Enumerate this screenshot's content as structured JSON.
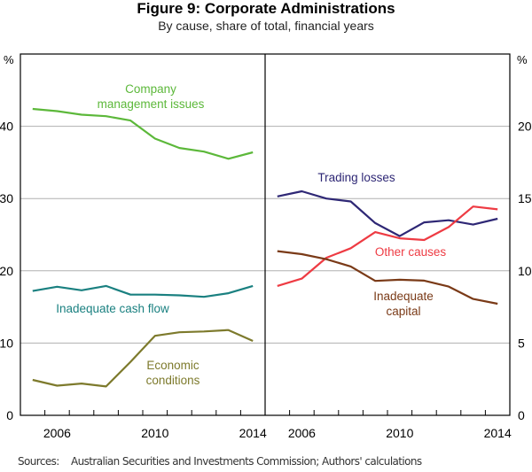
{
  "chart_data": {
    "type": "line",
    "title": "Figure 9: Corporate Administrations",
    "subtitle": "By cause, share of total, financial years",
    "sources_label": "Sources:",
    "sources_text": "Australian Securities and Investments Commission; Authors' calculations",
    "x": [
      2005,
      2006,
      2007,
      2008,
      2009,
      2010,
      2011,
      2012,
      2013,
      2014
    ],
    "xtick_labels": [
      "2006",
      "2010",
      "2014"
    ],
    "xtick_years": [
      2006,
      2010,
      2014
    ],
    "grid": true,
    "panels": [
      {
        "name": "left",
        "ylabel": "%",
        "ylim": [
          0,
          50
        ],
        "yticks": [
          0,
          10,
          20,
          30,
          40
        ],
        "series": [
          {
            "name": "Company management issues",
            "label_lines": [
              "Company",
              "management issues"
            ],
            "color": "#5cb83a",
            "values": [
              42.4,
              42.1,
              41.6,
              41.4,
              40.8,
              38.3,
              37.0,
              36.5,
              35.5,
              36.4
            ]
          },
          {
            "name": "Inadequate cash flow",
            "label_lines": [
              "Inadequate cash flow"
            ],
            "color": "#1a8080",
            "values": [
              17.2,
              17.8,
              17.3,
              17.9,
              16.7,
              16.7,
              16.6,
              16.4,
              16.9,
              17.9
            ]
          },
          {
            "name": "Economic conditions",
            "label_lines": [
              "Economic",
              "conditions"
            ],
            "color": "#7d7a2c",
            "values": [
              4.9,
              4.1,
              4.4,
              4.0,
              7.4,
              11.0,
              11.5,
              11.6,
              11.8,
              10.3
            ]
          }
        ]
      },
      {
        "name": "right",
        "ylabel": "%",
        "ylim": [
          0,
          25
        ],
        "yticks": [
          0,
          5,
          10,
          15,
          20
        ],
        "series": [
          {
            "name": "Trading losses",
            "label_lines": [
              "Trading losses"
            ],
            "color": "#2e2775",
            "values": [
              15.15,
              15.5,
              15.0,
              14.8,
              13.3,
              12.4,
              13.35,
              13.5,
              13.2,
              13.6
            ]
          },
          {
            "name": "Other causes",
            "label_lines": [
              "Other causes"
            ],
            "color": "#ee3b43",
            "values": [
              8.95,
              9.46,
              10.9,
              11.56,
              12.68,
              12.25,
              12.13,
              13.03,
              14.45,
              14.25
            ]
          },
          {
            "name": "Inadequate capital",
            "label_lines": [
              "Inadequate",
              "capital"
            ],
            "color": "#7a3a17",
            "values": [
              11.36,
              11.15,
              10.8,
              10.3,
              9.3,
              9.38,
              9.32,
              8.91,
              8.05,
              7.72
            ]
          }
        ]
      }
    ]
  }
}
